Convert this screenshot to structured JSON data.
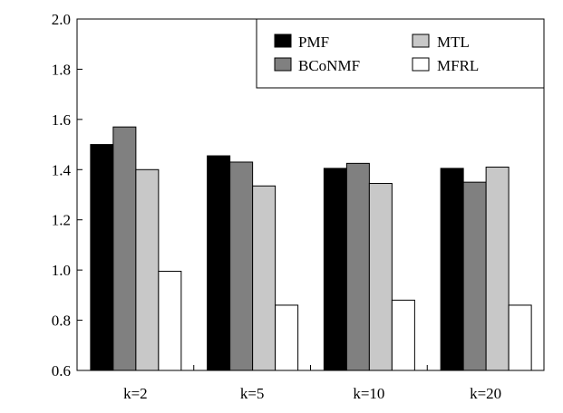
{
  "chart_data": {
    "type": "bar",
    "categories": [
      "k=2",
      "k=5",
      "k=10",
      "k=20"
    ],
    "series": [
      {
        "name": "PMF",
        "color": "#000000",
        "values": [
          1.5,
          1.455,
          1.405,
          1.405
        ]
      },
      {
        "name": "BCoNMF",
        "color": "#808080",
        "values": [
          1.57,
          1.43,
          1.425,
          1.35
        ]
      },
      {
        "name": "MTL",
        "color": "#c8c8c8",
        "values": [
          1.4,
          1.335,
          1.345,
          1.41
        ]
      },
      {
        "name": "MFRL",
        "color": "#ffffff",
        "values": [
          0.995,
          0.86,
          0.88,
          0.86
        ]
      }
    ],
    "ylim": [
      0.6,
      2.0
    ],
    "yticks": [
      "0.6",
      "0.8",
      "1.0",
      "1.2",
      "1.4",
      "1.6",
      "1.8",
      "2.0"
    ],
    "title": "",
    "xlabel": "",
    "ylabel": "",
    "grid": false,
    "legend_position": "top-right"
  }
}
